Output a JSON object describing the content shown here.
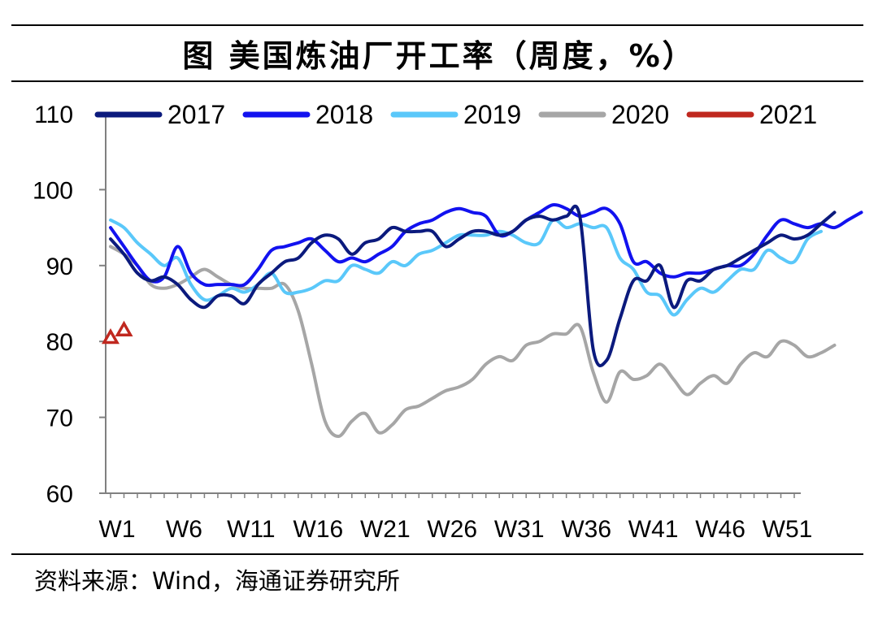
{
  "title": "图  美国炼油厂开工率（周度，%）",
  "source": "资料来源：Wind，海通证券研究所",
  "chart_data": {
    "type": "line",
    "title": "美国炼油厂开工率（周度，%）",
    "xlabel": "",
    "ylabel": "",
    "ylim": [
      60,
      110
    ],
    "yticks": [
      "60",
      "70",
      "80",
      "90",
      "100",
      "110"
    ],
    "x_tick_labels": [
      "W1",
      "W6",
      "W11",
      "W16",
      "W21",
      "W26",
      "W31",
      "W36",
      "W41",
      "W46",
      "W51"
    ],
    "legend_position": "top",
    "series": [
      {
        "name": "2017",
        "color": "#0b1a7d",
        "marker": "none",
        "values": [
          93.5,
          91.5,
          89.0,
          88.0,
          88.5,
          87.5,
          85.5,
          84.5,
          86.0,
          86.0,
          85.0,
          87.5,
          89.0,
          90.5,
          91.0,
          93.0,
          94.0,
          93.5,
          91.5,
          93.0,
          93.5,
          95.0,
          94.5,
          94.5,
          94.5,
          92.5,
          93.5,
          94.5,
          94.5,
          94.0,
          94.5,
          96.0,
          96.5,
          96.0,
          96.5,
          96.5,
          79.0,
          77.5,
          83.0,
          88.0,
          88.0,
          90.0,
          84.5,
          88.0,
          88.0,
          89.5,
          90.0,
          91.0,
          92.0,
          93.0,
          94.0,
          93.5,
          94.0,
          95.5,
          97.0
        ]
      },
      {
        "name": "2018",
        "color": "#1212ef",
        "marker": "none",
        "values": [
          95.0,
          92.5,
          90.0,
          88.0,
          88.5,
          92.5,
          89.0,
          87.5,
          87.5,
          87.5,
          87.5,
          89.5,
          92.0,
          92.5,
          93.0,
          93.5,
          92.0,
          90.5,
          91.0,
          90.5,
          91.5,
          92.5,
          94.5,
          95.5,
          96.0,
          97.0,
          97.5,
          97.0,
          96.5,
          94.0,
          94.5,
          96.0,
          97.0,
          98.0,
          97.5,
          96.5,
          97.0,
          97.5,
          95.5,
          90.5,
          90.5,
          89.0,
          88.5,
          89.0,
          89.0,
          89.5,
          90.0,
          90.0,
          91.5,
          94.0,
          96.0,
          95.5,
          95.0,
          95.5,
          95.0,
          96.0,
          97.0
        ]
      },
      {
        "name": "2019",
        "color": "#5ac8fa",
        "marker": "none",
        "values": [
          96.0,
          95.0,
          93.0,
          91.5,
          90.0,
          91.0,
          87.5,
          85.5,
          86.0,
          87.0,
          86.5,
          87.5,
          89.0,
          86.5,
          86.5,
          87.0,
          88.0,
          88.0,
          90.0,
          89.5,
          89.0,
          90.5,
          90.0,
          91.5,
          92.0,
          93.0,
          94.0,
          94.0,
          94.0,
          94.5,
          94.0,
          93.0,
          93.0,
          96.0,
          95.0,
          95.5,
          95.0,
          95.0,
          91.0,
          89.5,
          86.5,
          86.0,
          83.5,
          85.5,
          87.0,
          86.5,
          88.0,
          89.5,
          89.5,
          92.0,
          91.0,
          90.5,
          93.5,
          94.5
        ]
      },
      {
        "name": "2020",
        "color": "#a6a6a6",
        "marker": "none",
        "values": [
          92.5,
          91.5,
          90.0,
          87.5,
          87.0,
          87.5,
          88.5,
          89.5,
          88.5,
          87.5,
          87.0,
          87.0,
          87.0,
          87.5,
          84.0,
          77.0,
          69.5,
          67.5,
          69.5,
          70.5,
          68.0,
          69.0,
          71.0,
          71.5,
          72.5,
          73.5,
          74.0,
          75.0,
          77.0,
          78.0,
          77.5,
          79.5,
          80.0,
          81.0,
          81.0,
          82.0,
          76.0,
          72.0,
          76.0,
          75.0,
          75.5,
          77.0,
          75.0,
          73.0,
          74.5,
          75.5,
          74.5,
          77.0,
          78.5,
          78.0,
          80.0,
          79.5,
          78.0,
          78.5,
          79.5
        ]
      },
      {
        "name": "2021",
        "color": "#c0281f",
        "marker": "triangle-open",
        "values": [
          80.5,
          81.5
        ]
      }
    ]
  }
}
